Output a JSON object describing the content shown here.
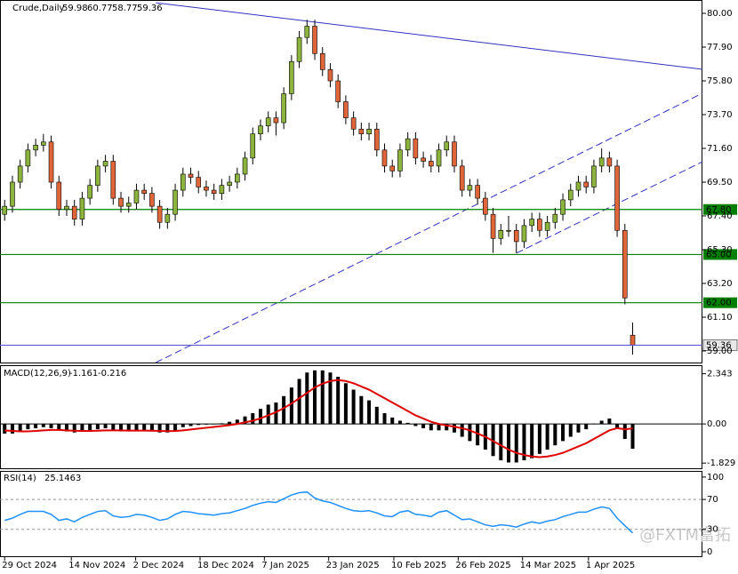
{
  "chart_data": [
    {
      "type": "candlestick",
      "title": "Crude,Daily",
      "candles": [
        [
          67.5,
          68.4,
          67.1,
          68.0
        ],
        [
          68.0,
          69.9,
          67.6,
          69.5
        ],
        [
          69.5,
          70.9,
          69.1,
          70.5
        ],
        [
          70.5,
          71.9,
          70.1,
          71.5
        ],
        [
          71.5,
          72.2,
          71.1,
          71.8
        ],
        [
          71.8,
          72.5,
          71.4,
          72.0
        ],
        [
          72.0,
          72.4,
          69.1,
          69.5
        ],
        [
          69.5,
          69.9,
          67.4,
          67.8
        ],
        [
          67.8,
          68.4,
          67.4,
          68.0
        ],
        [
          68.0,
          68.4,
          66.8,
          67.2
        ],
        [
          67.2,
          68.9,
          66.8,
          68.5
        ],
        [
          68.5,
          69.7,
          68.1,
          69.3
        ],
        [
          69.3,
          70.9,
          68.9,
          70.5
        ],
        [
          70.5,
          71.2,
          70.1,
          70.8
        ],
        [
          70.8,
          71.2,
          68.1,
          68.5
        ],
        [
          68.5,
          68.9,
          67.6,
          68.0
        ],
        [
          68.0,
          68.6,
          67.6,
          68.2
        ],
        [
          68.2,
          69.4,
          67.8,
          69.0
        ],
        [
          69.0,
          69.4,
          68.4,
          68.8
        ],
        [
          68.8,
          69.2,
          67.6,
          68.0
        ],
        [
          68.0,
          68.4,
          66.6,
          67.0
        ],
        [
          67.0,
          67.9,
          66.6,
          67.5
        ],
        [
          67.5,
          69.4,
          67.1,
          69.0
        ],
        [
          69.0,
          70.4,
          68.6,
          70.0
        ],
        [
          70.0,
          70.4,
          69.4,
          69.8
        ],
        [
          69.8,
          70.2,
          68.8,
          69.2
        ],
        [
          69.2,
          69.6,
          68.6,
          69.0
        ],
        [
          69.0,
          69.4,
          68.4,
          68.8
        ],
        [
          68.8,
          69.7,
          68.4,
          69.3
        ],
        [
          69.3,
          69.9,
          68.9,
          69.5
        ],
        [
          69.5,
          70.4,
          69.1,
          70.0
        ],
        [
          70.0,
          71.4,
          69.6,
          71.0
        ],
        [
          71.0,
          72.9,
          70.6,
          72.5
        ],
        [
          72.5,
          73.4,
          72.1,
          73.0
        ],
        [
          73.0,
          73.9,
          72.6,
          73.5
        ],
        [
          73.5,
          73.9,
          72.4,
          73.2
        ],
        [
          73.2,
          75.4,
          72.8,
          75.0
        ],
        [
          75.0,
          77.4,
          74.6,
          77.0
        ],
        [
          77.0,
          78.9,
          76.6,
          78.5
        ],
        [
          78.5,
          79.6,
          78.1,
          79.2
        ],
        [
          79.2,
          79.6,
          77.1,
          77.5
        ],
        [
          77.5,
          77.9,
          76.1,
          76.5
        ],
        [
          76.5,
          76.9,
          75.4,
          75.8
        ],
        [
          75.8,
          76.2,
          74.1,
          74.5
        ],
        [
          74.5,
          74.9,
          73.1,
          73.5
        ],
        [
          73.5,
          73.9,
          72.4,
          72.8
        ],
        [
          72.8,
          73.2,
          72.1,
          72.5
        ],
        [
          72.5,
          73.2,
          72.1,
          72.8
        ],
        [
          72.8,
          73.2,
          71.1,
          71.5
        ],
        [
          71.5,
          71.9,
          70.1,
          70.5
        ],
        [
          70.5,
          70.9,
          69.8,
          70.2
        ],
        [
          70.2,
          71.9,
          69.8,
          71.5
        ],
        [
          71.5,
          72.6,
          71.1,
          72.2
        ],
        [
          72.2,
          72.6,
          70.6,
          71.0
        ],
        [
          71.0,
          71.4,
          70.4,
          70.8
        ],
        [
          70.8,
          71.2,
          70.1,
          70.5
        ],
        [
          70.5,
          71.9,
          70.1,
          71.5
        ],
        [
          71.5,
          72.4,
          71.1,
          72.0
        ],
        [
          72.0,
          72.4,
          70.1,
          70.5
        ],
        [
          70.5,
          70.9,
          68.6,
          69.0
        ],
        [
          69.0,
          69.7,
          68.6,
          69.3
        ],
        [
          69.3,
          69.7,
          68.1,
          68.5
        ],
        [
          68.5,
          68.9,
          67.1,
          67.5
        ],
        [
          67.5,
          67.9,
          65.1,
          66.0
        ],
        [
          66.0,
          66.9,
          65.6,
          66.5
        ],
        [
          66.5,
          67.4,
          66.1,
          66.5
        ],
        [
          66.5,
          66.9,
          65.1,
          65.8
        ],
        [
          65.8,
          67.2,
          65.4,
          66.8
        ],
        [
          66.8,
          67.6,
          66.4,
          67.2
        ],
        [
          67.2,
          67.6,
          66.1,
          66.5
        ],
        [
          66.5,
          67.4,
          66.1,
          67.0
        ],
        [
          67.0,
          67.9,
          66.6,
          67.5
        ],
        [
          67.5,
          68.8,
          67.1,
          68.4
        ],
        [
          68.4,
          69.4,
          68.0,
          69.0
        ],
        [
          69.0,
          69.9,
          68.6,
          69.5
        ],
        [
          69.5,
          69.9,
          68.8,
          69.2
        ],
        [
          69.2,
          70.9,
          68.8,
          70.5
        ],
        [
          70.5,
          71.6,
          70.1,
          71.0
        ],
        [
          71.0,
          71.4,
          70.1,
          70.5
        ],
        [
          70.5,
          70.9,
          66.1,
          66.5
        ],
        [
          66.5,
          66.9,
          61.9,
          62.3
        ],
        [
          59.98,
          60.77,
          58.77,
          59.36
        ]
      ],
      "up_color": "#8cb43c",
      "down_color": "#e0663a",
      "current_color": "#5050d0",
      "xlim": [
        -0.6,
        90
      ],
      "xticks": [
        {
          "value": 0,
          "label": "29 Oct 2024"
        },
        {
          "value": 8.6,
          "label": "14 Nov 2024"
        },
        {
          "value": 16.9,
          "label": "2 Dec 2024"
        },
        {
          "value": 25.2,
          "label": "18 Dec 2024"
        },
        {
          "value": 33.5,
          "label": "7 Jan 2025"
        },
        {
          "value": 41.8,
          "label": "23 Jan 2025"
        },
        {
          "value": 50.2,
          "label": "10 Feb 2025"
        },
        {
          "value": 58.5,
          "label": "26 Feb 2025"
        },
        {
          "value": 66.8,
          "label": "14 Mar 2025"
        },
        {
          "value": 75.3,
          "label": "1 Apr 2025"
        }
      ],
      "ylim": [
        58.28,
        80.72
      ],
      "yticks": [
        {
          "value": 80,
          "label": "80.00"
        },
        {
          "value": 77.9,
          "label": "77.90"
        },
        {
          "value": 75.8,
          "label": "75.80"
        },
        {
          "value": 73.7,
          "label": "73.70"
        },
        {
          "value": 71.6,
          "label": "71.60"
        },
        {
          "value": 69.5,
          "label": "69.50"
        },
        {
          "value": 67.4,
          "label": "67.40"
        },
        {
          "value": 65.3,
          "label": "65.30"
        },
        {
          "value": 63.2,
          "label": "63.20"
        },
        {
          "value": 61.1,
          "label": "61.10"
        },
        {
          "value": 59,
          "label": "59.00"
        }
      ],
      "hlines": [
        {
          "value": 67.8,
          "label": "67.80",
          "color": "#008000"
        },
        {
          "value": 65,
          "label": "65.00",
          "color": "#008000"
        },
        {
          "value": 62,
          "label": "62.00",
          "color": "#008000"
        }
      ],
      "trendlines": [
        {
          "x": [
            19.5,
            90
          ],
          "y": [
            80.66,
            76.52
          ],
          "color": "#3030c0",
          "dash": false
        },
        {
          "x": [
            19.5,
            90
          ],
          "y": [
            58.28,
            75.03
          ],
          "color": "#3030c0",
          "dash": true
        },
        {
          "x": [
            66,
            90
          ],
          "y": [
            65.08,
            70.77
          ],
          "color": "#3030c0",
          "dash": true
        }
      ]
    },
    {
      "type": "macd",
      "title": "MACD(12,26,9)",
      "histogram": [
        -0.45,
        -0.45,
        -0.35,
        -0.25,
        -0.2,
        -0.15,
        -0.2,
        -0.3,
        -0.35,
        -0.4,
        -0.35,
        -0.3,
        -0.25,
        -0.2,
        -0.3,
        -0.35,
        -0.35,
        -0.3,
        -0.3,
        -0.35,
        -0.4,
        -0.4,
        -0.3,
        -0.15,
        -0.1,
        -0.05,
        -0.03,
        0.0,
        0.03,
        0.1,
        0.2,
        0.35,
        0.5,
        0.7,
        0.9,
        1.0,
        1.3,
        1.7,
        2.1,
        2.4,
        2.5,
        2.5,
        2.4,
        2.2,
        1.9,
        1.6,
        1.3,
        1.1,
        0.8,
        0.5,
        0.3,
        0.15,
        0.05,
        -0.1,
        -0.2,
        -0.3,
        -0.3,
        -0.3,
        -0.4,
        -0.6,
        -0.8,
        -1.0,
        -1.2,
        -1.5,
        -1.7,
        -1.8,
        -1.8,
        -1.7,
        -1.6,
        -1.4,
        -1.2,
        -1.0,
        -0.8,
        -0.6,
        -0.4,
        -0.25,
        0.0,
        0.15,
        0.25,
        -0.2,
        -0.7,
        -1.161
      ],
      "signal": [
        -0.3,
        -0.33,
        -0.35,
        -0.35,
        -0.33,
        -0.3,
        -0.28,
        -0.28,
        -0.3,
        -0.32,
        -0.33,
        -0.33,
        -0.32,
        -0.3,
        -0.3,
        -0.3,
        -0.31,
        -0.31,
        -0.31,
        -0.32,
        -0.33,
        -0.34,
        -0.33,
        -0.3,
        -0.26,
        -0.22,
        -0.18,
        -0.14,
        -0.1,
        -0.06,
        0.0,
        0.07,
        0.15,
        0.26,
        0.4,
        0.55,
        0.74,
        0.95,
        1.2,
        1.45,
        1.7,
        1.88,
        2.0,
        2.05,
        2.0,
        1.9,
        1.75,
        1.6,
        1.4,
        1.2,
        1.0,
        0.8,
        0.6,
        0.4,
        0.25,
        0.1,
        0.0,
        -0.07,
        -0.13,
        -0.2,
        -0.3,
        -0.45,
        -0.6,
        -0.8,
        -1.0,
        -1.2,
        -1.35,
        -1.45,
        -1.52,
        -1.55,
        -1.52,
        -1.45,
        -1.35,
        -1.2,
        -1.05,
        -0.9,
        -0.7,
        -0.5,
        -0.3,
        -0.2,
        -0.25,
        -0.216
      ],
      "histogram_color": "#000000",
      "signal_color": "#e00000",
      "ylim": [
        -2.07,
        2.7
      ],
      "yticks": [
        2.343,
        {
          "value": 0,
          "label": "0.00"
        },
        -1.829
      ]
    },
    {
      "type": "line",
      "title": "RSI(14)",
      "values": [
        42,
        45,
        50,
        54,
        54,
        54,
        50,
        42,
        44,
        40,
        46,
        50,
        54,
        55,
        48,
        46,
        47,
        50,
        49,
        46,
        42,
        44,
        50,
        54,
        53,
        51,
        50,
        49,
        51,
        52,
        55,
        58,
        62,
        65,
        67,
        66,
        71,
        76,
        79,
        80,
        72,
        68,
        66,
        62,
        58,
        55,
        54,
        55,
        52,
        48,
        47,
        53,
        55,
        50,
        49,
        47,
        53,
        55,
        49,
        43,
        44,
        40,
        36,
        34,
        36,
        35,
        33,
        37,
        40,
        38,
        41,
        43,
        47,
        50,
        53,
        53,
        57,
        60,
        58,
        45,
        35,
        25.1463
      ],
      "color": "#1e90ff",
      "ylim": [
        -6,
        107
      ],
      "yticks": [
        100,
        70,
        30,
        0
      ],
      "levels": [
        70,
        30
      ]
    }
  ],
  "watermark": "@FXTM富拓"
}
